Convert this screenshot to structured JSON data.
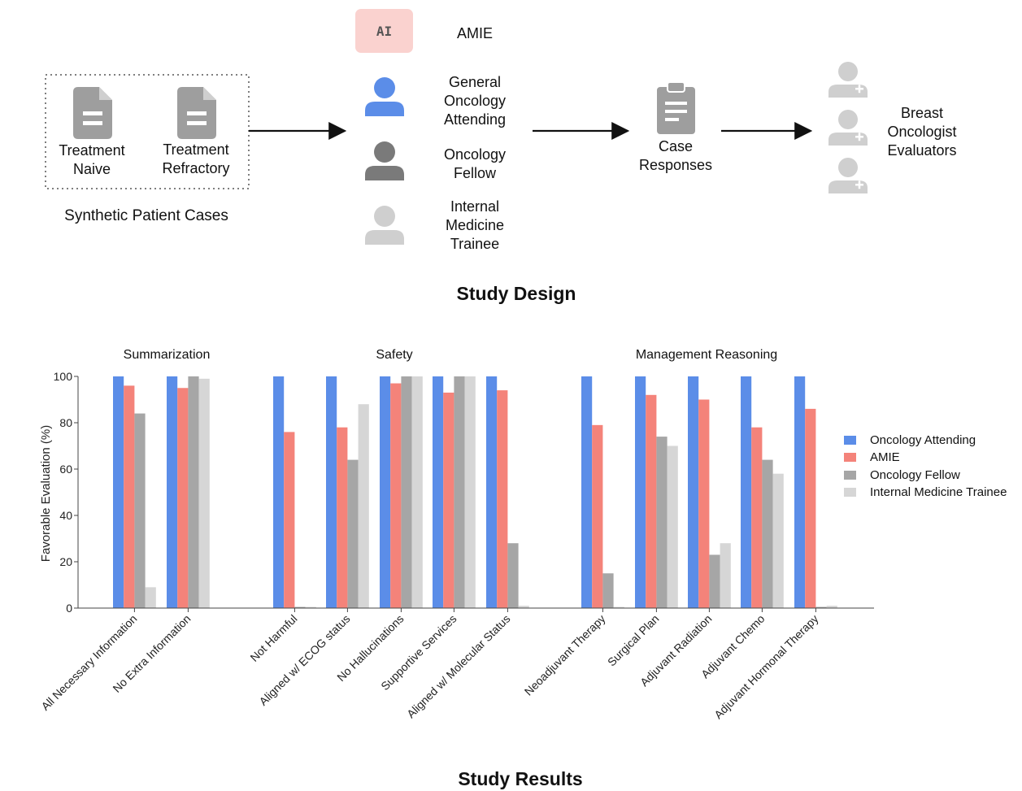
{
  "diagram": {
    "patient_cases": {
      "caption": "Synthetic Patient Cases",
      "doc1_label": "Treatment\nNaive",
      "doc2_label": "Treatment\nRefractory"
    },
    "ai_badge": "AI",
    "participants": [
      {
        "label": "AMIE",
        "icon": "ai-badge"
      },
      {
        "label": "General\nOncology\nAttending",
        "icon": "person-icon",
        "color": "#5b8de8"
      },
      {
        "label": "Oncology\nFellow",
        "icon": "person-icon",
        "color": "#7a7a7a"
      },
      {
        "label": "Internal\nMedicine\nTrainee",
        "icon": "person-icon",
        "color": "#cfcfcf"
      }
    ],
    "case_responses_label": "Case\nResponses",
    "evaluators_label": "Breast\nOncologist\nEvaluators",
    "section_title": "Study Design"
  },
  "results_title": "Study Results",
  "chart_data": {
    "type": "bar",
    "ylabel": "Favorable Evaluation (%)",
    "ylim": [
      0,
      100
    ],
    "yticks": [
      0,
      20,
      40,
      60,
      80,
      100
    ],
    "groups": [
      {
        "title": "Summarization",
        "categories": [
          "All Necessary Information",
          "No Extra Information"
        ]
      },
      {
        "title": "Safety",
        "categories": [
          "Not Harmful",
          "Aligned w/ ECOG status",
          "No Hallucinations",
          "Supportive Services",
          "Aligned w/ Molecular Status"
        ]
      },
      {
        "title": "Management Reasoning",
        "categories": [
          "Neoadjuvant Therapy",
          "Surgical Plan",
          "Adjuvant Radiation",
          "Adjuvant Chemo",
          "Adjuvant Hormonal Therapy"
        ]
      }
    ],
    "series": [
      {
        "name": "Oncology Attending",
        "color": "#5b8de8",
        "values": [
          100,
          100,
          100,
          100,
          100,
          100,
          100,
          100,
          100,
          100,
          100,
          100
        ]
      },
      {
        "name": "AMIE",
        "color": "#f4837a",
        "values": [
          96,
          95,
          76,
          78,
          97,
          93,
          94,
          79,
          92,
          90,
          78,
          86
        ]
      },
      {
        "name": "Oncology Fellow",
        "color": "#a6a6a6",
        "values": [
          84,
          100,
          0.5,
          64,
          100,
          100,
          28,
          15,
          74,
          23,
          64,
          0.5
        ]
      },
      {
        "name": "Internal Medicine Trainee",
        "color": "#d6d6d6",
        "values": [
          9,
          99,
          0.5,
          88,
          100,
          100,
          1,
          0.5,
          70,
          28,
          58,
          1
        ]
      }
    ]
  }
}
